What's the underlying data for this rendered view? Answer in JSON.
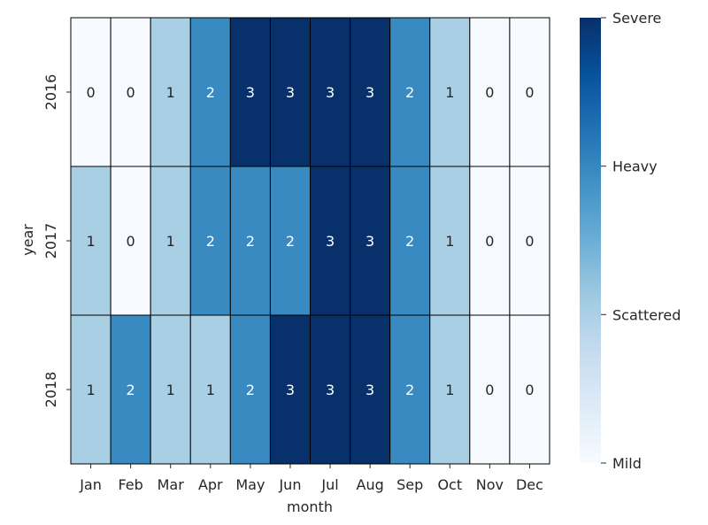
{
  "chart_data": {
    "type": "heatmap",
    "title": "",
    "xlabel": "month",
    "ylabel": "year",
    "x": [
      "Jan",
      "Feb",
      "Mar",
      "Apr",
      "May",
      "Jun",
      "Jul",
      "Aug",
      "Sep",
      "Oct",
      "Nov",
      "Dec"
    ],
    "y": [
      "2016",
      "2017",
      "2018"
    ],
    "values": [
      [
        0,
        0,
        1,
        2,
        3,
        3,
        3,
        3,
        2,
        1,
        0,
        0
      ],
      [
        1,
        0,
        1,
        2,
        2,
        2,
        3,
        3,
        2,
        1,
        0,
        0
      ],
      [
        1,
        2,
        1,
        1,
        2,
        3,
        3,
        3,
        2,
        1,
        0,
        0
      ]
    ],
    "colorbar": {
      "range": [
        0,
        3
      ],
      "ticks": [
        {
          "value": 0,
          "label": "Mild"
        },
        {
          "value": 1,
          "label": "Scattered"
        },
        {
          "value": 2,
          "label": "Heavy"
        },
        {
          "value": 3,
          "label": "Severe"
        }
      ],
      "colormap": "Blues"
    },
    "cell_colors": [
      "#f7fbff",
      "#a9cfe5",
      "#3a8ac2",
      "#08306b"
    ],
    "annotation_colors": [
      "#262626",
      "#262626",
      "#ffffff",
      "#ffffff"
    ],
    "cell_border_color": "#000000",
    "annotations": true
  }
}
